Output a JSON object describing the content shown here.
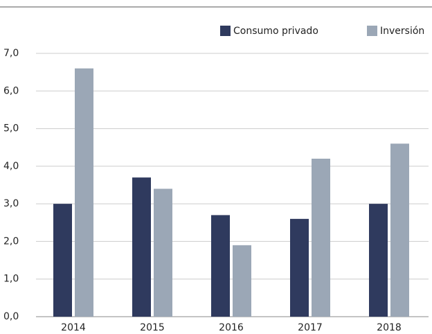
{
  "chart_data": {
    "type": "bar",
    "categories": [
      "2014",
      "2015",
      "2016",
      "2017",
      "2018"
    ],
    "series": [
      {
        "name": "Consumo privado",
        "color": "#2f3a5e",
        "values": [
          3.0,
          3.7,
          2.7,
          2.6,
          3.0
        ]
      },
      {
        "name": "Inversión",
        "color": "#9ba7b6",
        "values": [
          6.6,
          3.4,
          1.9,
          4.2,
          4.6
        ]
      }
    ],
    "ylim": [
      0,
      7
    ],
    "yticks": [
      {
        "value": 0,
        "label": "0,0"
      },
      {
        "value": 1,
        "label": "1,0"
      },
      {
        "value": 2,
        "label": "2,0"
      },
      {
        "value": 3,
        "label": "3,0"
      },
      {
        "value": 4,
        "label": "4,0"
      },
      {
        "value": 5,
        "label": "5,0"
      },
      {
        "value": 6,
        "label": "6,0"
      },
      {
        "value": 7,
        "label": "7,0"
      }
    ],
    "grid": true,
    "legend": "top-right"
  }
}
